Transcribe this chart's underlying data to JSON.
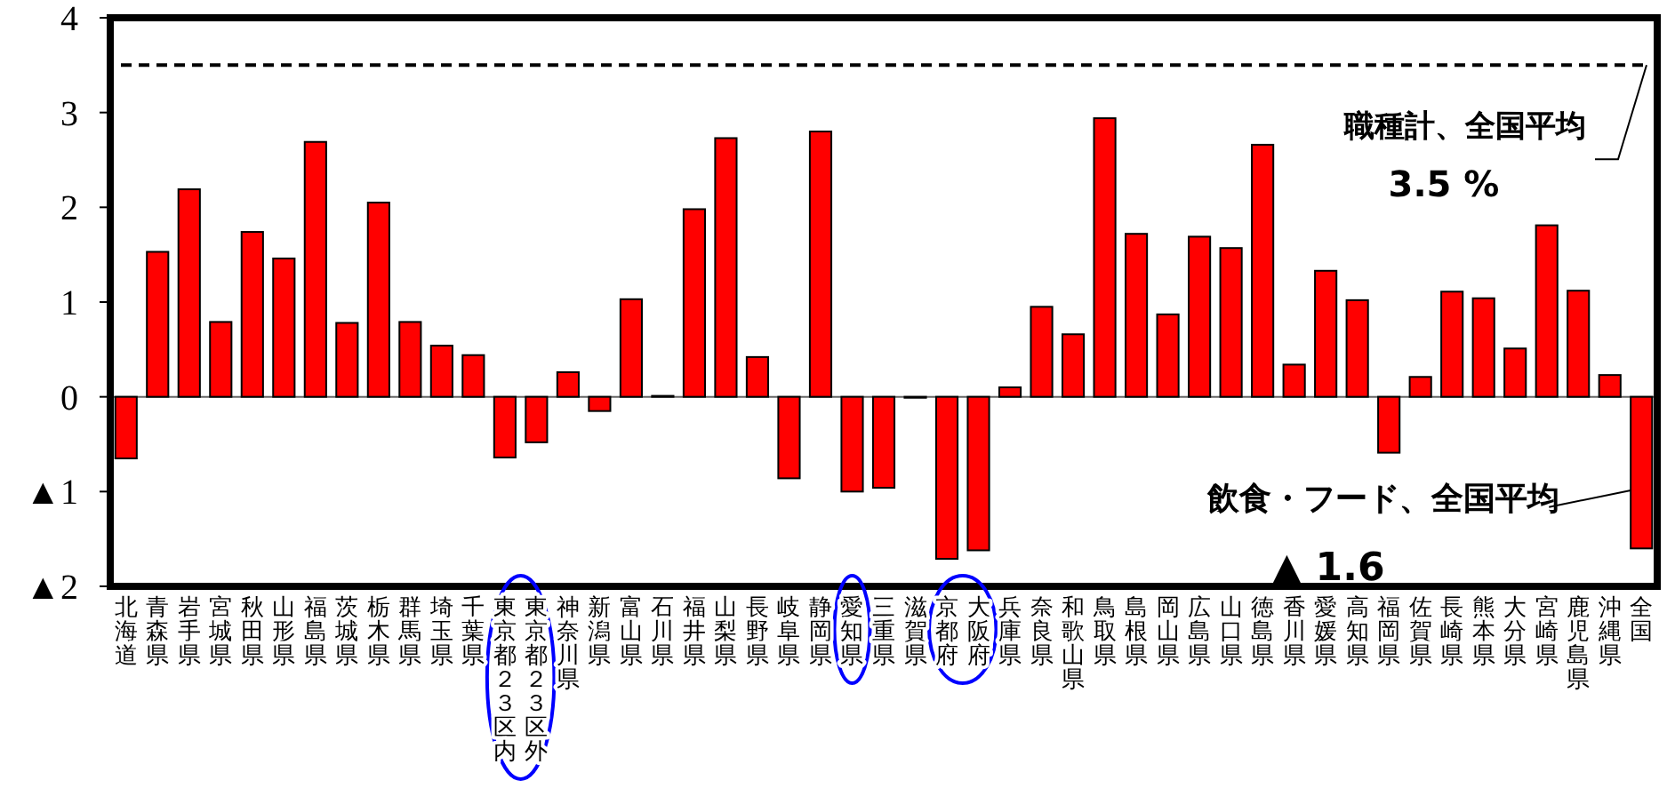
{
  "chart_data": {
    "type": "bar",
    "categories": [
      "北海道",
      "青森県",
      "岩手県",
      "宮城県",
      "秋田県",
      "山形県",
      "福島県",
      "茨城県",
      "栃木県",
      "群馬県",
      "埼玉県",
      "千葉県",
      "東京都２３区内",
      "東京都２３区外",
      "神奈川県",
      "新潟県",
      "富山県",
      "石川県",
      "福井県",
      "山梨県",
      "長野県",
      "岐阜県",
      "静岡県",
      "愛知県",
      "三重県",
      "滋賀県",
      "京都府",
      "大阪府",
      "兵庫県",
      "奈良県",
      "和歌山県",
      "鳥取県",
      "島根県",
      "岡山県",
      "広島県",
      "山口県",
      "徳島県",
      "香川県",
      "愛媛県",
      "高知県",
      "福岡県",
      "佐賀県",
      "長崎県",
      "熊本県",
      "大分県",
      "宮崎県",
      "鹿児島県",
      "沖縄県",
      "全国"
    ],
    "values": [
      -0.65,
      1.53,
      2.19,
      0.79,
      1.74,
      1.46,
      2.69,
      0.78,
      2.05,
      0.79,
      0.54,
      0.44,
      -0.64,
      -0.48,
      0.26,
      -0.15,
      1.03,
      0.01,
      1.98,
      2.73,
      0.42,
      -0.86,
      2.8,
      -1.0,
      -0.96,
      -0.01,
      -1.71,
      -1.62,
      0.1,
      0.95,
      0.66,
      2.94,
      1.72,
      0.87,
      1.69,
      1.57,
      2.66,
      0.34,
      1.33,
      1.02,
      -0.59,
      0.21,
      1.11,
      1.04,
      0.51,
      1.81,
      1.12,
      0.23,
      -1.6
    ],
    "color": "#ff0000",
    "ylim": [
      -2,
      4
    ],
    "yticks": [
      {
        "value": -2,
        "label": "▲2"
      },
      {
        "value": -1,
        "label": "▲1"
      },
      0,
      1,
      2,
      3,
      4
    ],
    "ref_lines": [
      {
        "axis": "y",
        "value": 3.5,
        "label": "職種計、全国平均",
        "color": "#000000",
        "line_style": "dashed"
      }
    ],
    "annotations": [
      "3.5 %",
      {
        "text": "飲食・フード、全国平均",
        "x": "全国",
        "y": -1.6
      },
      "▲ 1.6"
    ]
  }
}
